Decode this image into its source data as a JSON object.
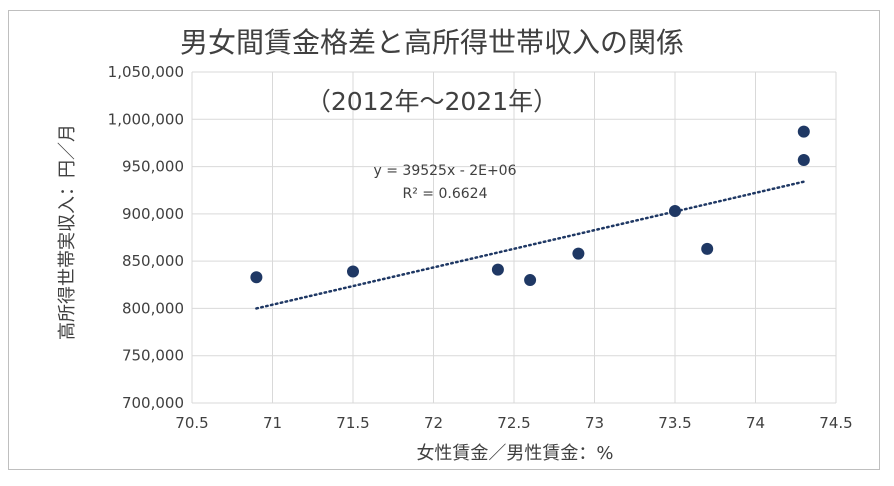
{
  "chart_data": {
    "type": "scatter",
    "title": "男女間賃金格差と高所得世帯収入の関係",
    "subtitle": "（2012年～2021年）",
    "xlabel": "女性賃金／男性賃金：%",
    "ylabel": "高所得世帯実収入：円／月",
    "xlim": [
      70.5,
      74.5
    ],
    "ylim": [
      700000,
      1050000
    ],
    "x_ticks": [
      "70.5",
      "71",
      "71.5",
      "72",
      "72.5",
      "73",
      "73.5",
      "74",
      "74.5"
    ],
    "y_ticks": [
      "700,000",
      "750,000",
      "800,000",
      "850,000",
      "900,000",
      "950,000",
      "1,000,000",
      "1,050,000"
    ],
    "grid": true,
    "point_color": "#1f3864",
    "trendline_color": "#1f3864",
    "points": [
      {
        "x": 70.9,
        "y": 833000
      },
      {
        "x": 71.5,
        "y": 839000
      },
      {
        "x": 72.4,
        "y": 841000
      },
      {
        "x": 72.6,
        "y": 830000
      },
      {
        "x": 72.9,
        "y": 858000
      },
      {
        "x": 73.5,
        "y": 903000
      },
      {
        "x": 73.7,
        "y": 863000
      },
      {
        "x": 74.3,
        "y": 987000
      },
      {
        "x": 74.3,
        "y": 957000
      }
    ],
    "trendline": {
      "type": "linear",
      "from": {
        "x": 70.9,
        "y": 800000
      },
      "to": {
        "x": 74.3,
        "y": 934000
      },
      "equation": "y = 39525x - 2E+06",
      "r2_label": "R² = 0.6624"
    }
  }
}
